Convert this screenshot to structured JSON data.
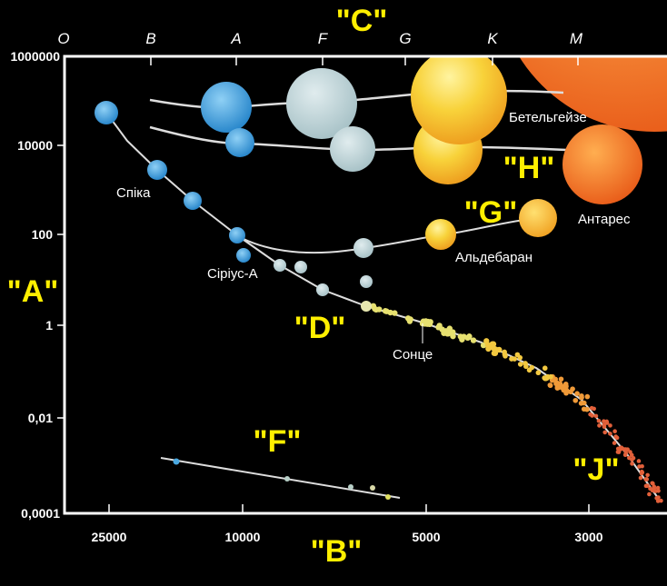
{
  "spectral_classes": [
    "O",
    "B",
    "A",
    "F",
    "G",
    "K",
    "M"
  ],
  "y_axis": {
    "ticks": [
      "1000000",
      "10000",
      "100",
      "1",
      "0,01",
      "0,0001"
    ]
  },
  "x_axis": {
    "ticks": [
      "25000",
      "10000",
      "5000",
      "3000"
    ]
  },
  "question_labels": {
    "A": "\"A\"",
    "B": "\"B\"",
    "C": "\"C\"",
    "D": "\"D\"",
    "F": "\"F\"",
    "G": "\"G\"",
    "H": "\"H\"",
    "J": "\"J\""
  },
  "stars": {
    "betelgeuse": "Бетельгейзе",
    "spica": "Спіка",
    "antares": "Антарес",
    "sirius": "Сіріус-А",
    "aldebaran": "Альдебаран",
    "sun": "Сонце"
  },
  "colors": {
    "label": "#ffef00",
    "axis": "#ffffff",
    "background": "#000000"
  }
}
